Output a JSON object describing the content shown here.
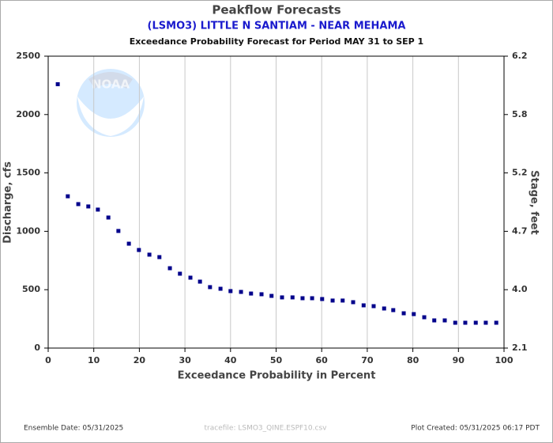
{
  "chart_data": {
    "type": "scatter",
    "title": "Peakflow Forecasts",
    "subtitle": "(LSMO3) LITTLE N SANTIAM - NEAR MEHAMA",
    "description": "Exceedance Probability Forecast for Period MAY 31 to SEP 1",
    "x_label": "Exceedance Probability in Percent",
    "y_label": "Discharge, cfs",
    "y2_label": "Stage, feet",
    "logo_text": "NOAA",
    "footer_left": "Ensemble Date: 05/31/2025",
    "footer_center": "tracefile: LSMO3_QINE.ESPF10.csv",
    "footer_right": "Plot Created: 05/31/2025 06:17 PDT",
    "color": "#00008b",
    "grid": true,
    "xlim": [
      0,
      100
    ],
    "xticks": [
      0,
      10,
      20,
      30,
      40,
      50,
      60,
      70,
      80,
      90,
      100
    ],
    "ylim": [
      0,
      2500
    ],
    "yticks": [
      0,
      500,
      1000,
      1500,
      2000,
      2500
    ],
    "y2ticks": [
      {
        "value": 2.1,
        "label": "2.1",
        "discharge": 0
      },
      {
        "value": 4.0,
        "label": "4.0",
        "discharge": 500
      },
      {
        "value": 4.7,
        "label": "4.7",
        "discharge": 1000
      },
      {
        "value": 5.2,
        "label": "5.2",
        "discharge": 1500
      },
      {
        "value": 5.8,
        "label": "5.8",
        "discharge": 2000
      },
      {
        "value": 6.2,
        "label": "6.2",
        "discharge": 2500
      }
    ],
    "x": [
      2.1,
      4.3,
      6.6,
      8.8,
      10.9,
      13.2,
      15.4,
      17.7,
      19.9,
      22.2,
      24.4,
      26.7,
      28.9,
      31.2,
      33.3,
      35.5,
      37.8,
      40.0,
      42.3,
      44.5,
      46.8,
      49.0,
      51.3,
      53.6,
      55.8,
      57.9,
      60.1,
      62.4,
      64.6,
      66.9,
      69.2,
      71.4,
      73.7,
      75.7,
      78.0,
      80.2,
      82.5,
      84.7,
      87.0,
      89.3,
      91.5,
      93.8,
      96.0,
      98.3
    ],
    "values": [
      2260,
      1300,
      1233,
      1213,
      1186,
      1118,
      1003,
      894,
      840,
      800,
      779,
      684,
      637,
      603,
      569,
      522,
      508,
      488,
      481,
      467,
      461,
      447,
      434,
      434,
      427,
      427,
      420,
      407,
      407,
      393,
      366,
      359,
      339,
      325,
      298,
      291,
      264,
      237,
      237,
      217,
      217,
      217,
      217,
      217
    ]
  }
}
